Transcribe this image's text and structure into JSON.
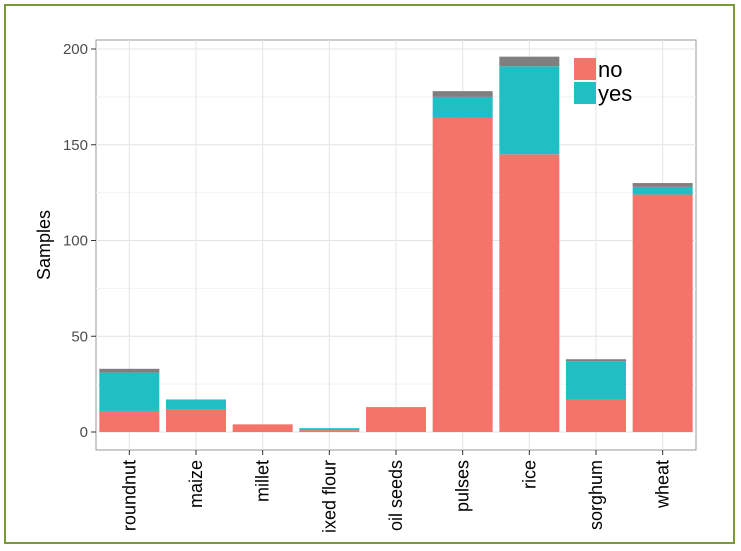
{
  "chart_data": {
    "type": "bar",
    "stacked": true,
    "ylabel": "Samples",
    "xlabel": "",
    "ylim": [
      0,
      205
    ],
    "yticks": [
      0,
      50,
      100,
      150,
      200
    ],
    "categories": [
      "roundnut",
      "maize",
      "millet",
      "ixed flour",
      "oil seeds",
      "pulses",
      "rice",
      "sorghum",
      "wheat"
    ],
    "series": [
      {
        "name": "no",
        "color": "#f4746a",
        "values": [
          11,
          12,
          4,
          1,
          13,
          164,
          145,
          17,
          124
        ]
      },
      {
        "name": "yes",
        "color": "#1fbfc3",
        "values": [
          20,
          5,
          0,
          1,
          0,
          11,
          46,
          20,
          4
        ]
      },
      {
        "color": "#7f7f7f",
        "values": [
          2,
          0,
          0,
          0,
          0,
          3,
          5,
          1,
          2
        ]
      }
    ],
    "legend_position": "top-right",
    "grid": true
  }
}
